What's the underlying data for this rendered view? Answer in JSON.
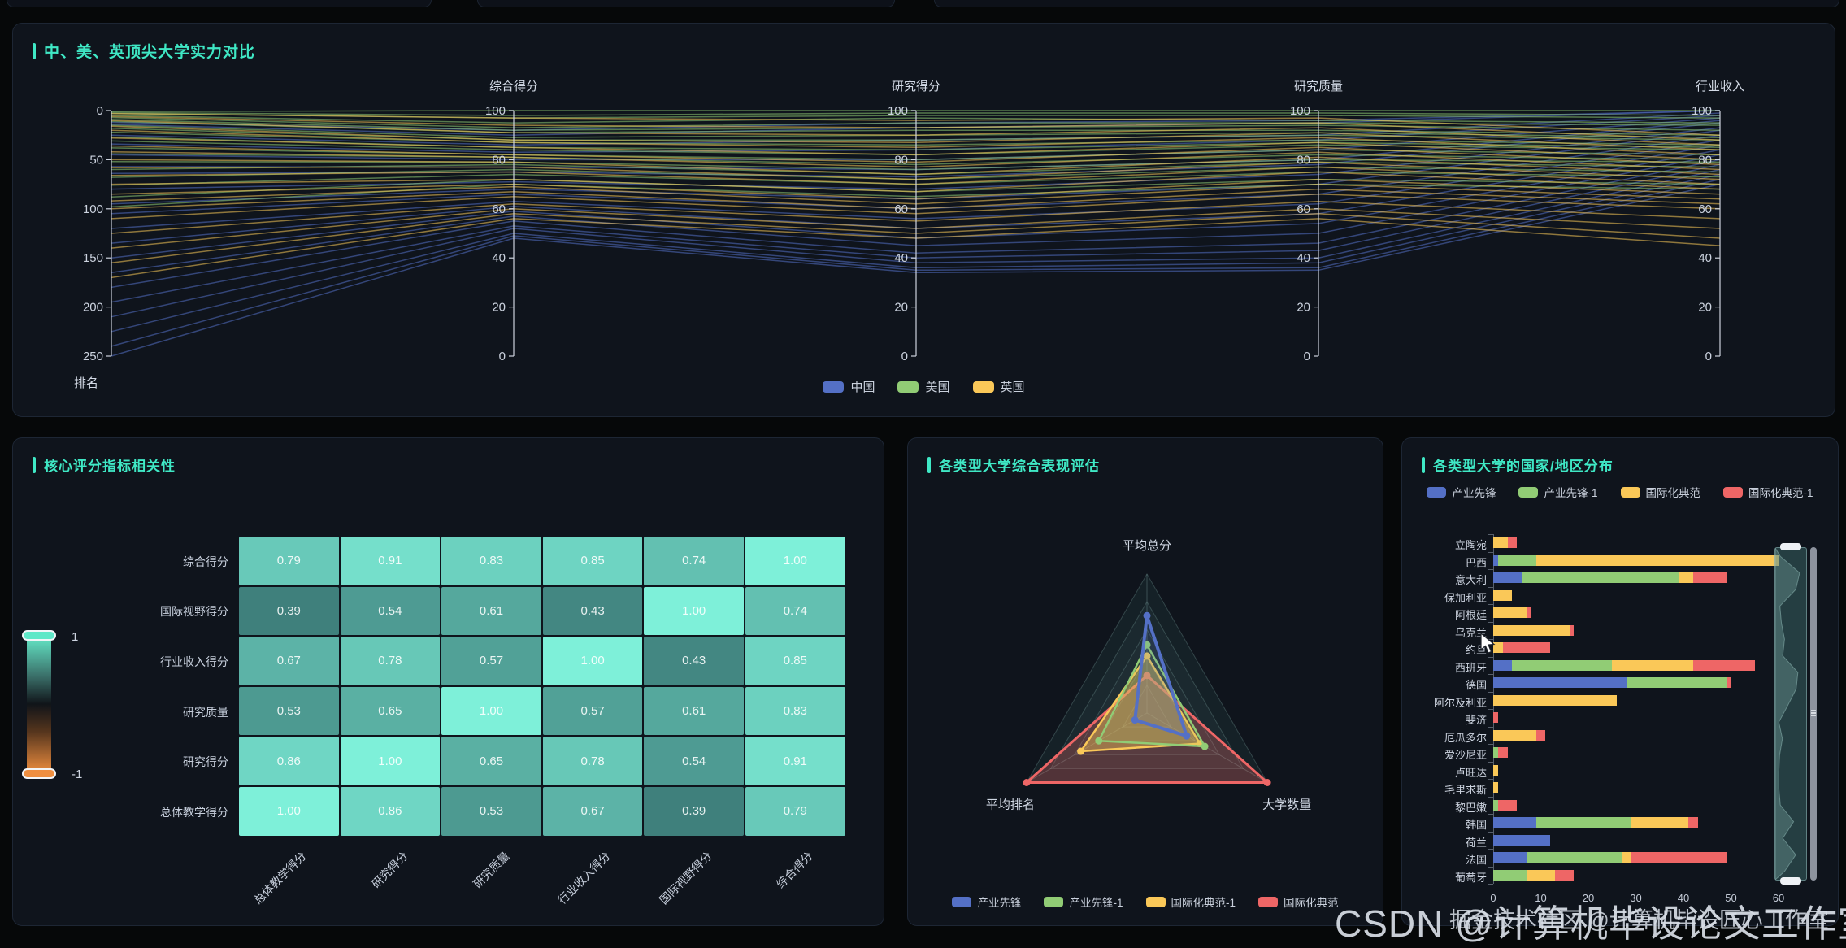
{
  "ui": {
    "top_panel_title": "中、美、英顶尖大学实力对比",
    "heatmap_title": "核心评分指标相关性",
    "radar_title": "各类型大学综合表现评估",
    "bars_title": "各类型大学的国家/地区分布",
    "watermark_large": "CSDN @计算机毕设论文工作室",
    "watermark_small": "掘金技术社区 @计算机毕设匠心工作室",
    "visualmap": {
      "max_label": "1",
      "min_label": "-1"
    },
    "accent_color": "#3fe8c5"
  },
  "chart_data": [
    {
      "id": "parallel",
      "type": "line",
      "subtype": "parallel-coordinates",
      "title": "中、美、英顶尖大学实力对比",
      "legend": [
        {
          "name": "中国",
          "color": "#5470c6"
        },
        {
          "name": "美国",
          "color": "#91cc75"
        },
        {
          "name": "英国",
          "color": "#fac858"
        }
      ],
      "axes": [
        {
          "name": "排名",
          "min": 0,
          "max": 250,
          "inverted": true,
          "tick_labels": [
            "0",
            "50",
            "100",
            "150",
            "200",
            "250"
          ]
        },
        {
          "name": "综合得分",
          "min": 0,
          "max": 100,
          "tick_labels": [
            "100",
            "80",
            "60",
            "40",
            "20",
            "0"
          ]
        },
        {
          "name": "研究得分",
          "min": 0,
          "max": 100,
          "tick_labels": [
            "100",
            "80",
            "60",
            "40",
            "20",
            "0"
          ]
        },
        {
          "name": "研究质量",
          "min": 0,
          "max": 100,
          "tick_labels": [
            "100",
            "80",
            "60",
            "40",
            "20",
            "0"
          ]
        },
        {
          "name": "行业收入",
          "min": 0,
          "max": 100,
          "tick_labels": [
            "100",
            "80",
            "60",
            "40",
            "20",
            "0"
          ]
        }
      ],
      "series": [
        {
          "name": "中国",
          "color": "#5470c6",
          "data": [
            [
              12,
              92,
              95,
              96,
              100
            ],
            [
              14,
              90,
              93,
              95,
              100
            ],
            [
              25,
              86,
              88,
              90,
              99
            ],
            [
              34,
              83,
              84,
              88,
              98
            ],
            [
              45,
              80,
              80,
              84,
              97
            ],
            [
              57,
              77,
              76,
              80,
              96
            ],
            [
              64,
              75,
              73,
              78,
              95
            ],
            [
              80,
              71,
              68,
              74,
              93
            ],
            [
              95,
              68,
              64,
              70,
              92
            ],
            [
              105,
              66,
              60,
              66,
              90
            ],
            [
              120,
              63,
              56,
              62,
              88
            ],
            [
              135,
              61,
              52,
              58,
              86
            ],
            [
              150,
              59,
              48,
              54,
              84
            ],
            [
              165,
              57,
              45,
              50,
              82
            ],
            [
              180,
              55,
              42,
              46,
              80
            ],
            [
              195,
              53,
              40,
              43,
              78
            ],
            [
              210,
              52,
              38,
              40,
              76
            ],
            [
              225,
              50,
              36,
              38,
              74
            ],
            [
              240,
              49,
              35,
              36,
              72
            ],
            [
              250,
              48,
              34,
              35,
              70
            ]
          ]
        },
        {
          "name": "美国",
          "color": "#91cc75",
          "data": [
            [
              1,
              100,
              100,
              100,
              100
            ],
            [
              2,
              98,
              99,
              99,
              98
            ],
            [
              3,
              97,
              98,
              98,
              97
            ],
            [
              5,
              95,
              97,
              96,
              95
            ],
            [
              7,
              93,
              95,
              95,
              94
            ],
            [
              9,
              92,
              93,
              94,
              92
            ],
            [
              11,
              91,
              92,
              92,
              90
            ],
            [
              15,
              89,
              90,
              91,
              89
            ],
            [
              18,
              88,
              88,
              90,
              88
            ],
            [
              22,
              87,
              86,
              88,
              86
            ],
            [
              27,
              85,
              84,
              87,
              85
            ],
            [
              31,
              84,
              82,
              86,
              84
            ],
            [
              38,
              82,
              80,
              84,
              82
            ],
            [
              44,
              81,
              78,
              82,
              80
            ],
            [
              52,
              79,
              76,
              80,
              79
            ],
            [
              60,
              78,
              74,
              79,
              77
            ],
            [
              68,
              76,
              72,
              77,
              75
            ],
            [
              76,
              74,
              70,
              75,
              73
            ],
            [
              88,
              72,
              67,
              72,
              70
            ],
            [
              98,
              70,
              65,
              70,
              68
            ]
          ]
        },
        {
          "name": "英国",
          "color": "#fac858",
          "data": [
            [
              3,
              97,
              96,
              97,
              90
            ],
            [
              6,
              94,
              93,
              95,
              88
            ],
            [
              10,
              91,
              90,
              93,
              86
            ],
            [
              16,
              88,
              87,
              91,
              84
            ],
            [
              20,
              87,
              85,
              89,
              82
            ],
            [
              28,
              85,
              82,
              87,
              80
            ],
            [
              36,
              82,
              79,
              85,
              78
            ],
            [
              42,
              81,
              77,
              83,
              76
            ],
            [
              50,
              79,
              74,
              81,
              74
            ],
            [
              58,
              77,
              72,
              79,
              72
            ],
            [
              66,
              75,
              70,
              77,
              70
            ],
            [
              75,
              72,
              67,
              75,
              68
            ],
            [
              85,
              70,
              64,
              72,
              66
            ],
            [
              92,
              69,
              62,
              70,
              64
            ],
            [
              100,
              67,
              60,
              68,
              62
            ],
            [
              110,
              65,
              58,
              66,
              60
            ],
            [
              125,
              62,
              55,
              63,
              56
            ],
            [
              140,
              60,
              52,
              60,
              52
            ],
            [
              155,
              58,
              50,
              58,
              48
            ],
            [
              170,
              56,
              48,
              56,
              45
            ]
          ]
        }
      ]
    },
    {
      "id": "heatmap",
      "type": "heatmap",
      "title": "核心评分指标相关性",
      "x_labels": [
        "总体教学得分",
        "研究得分",
        "研究质量",
        "行业收入得分",
        "国际视野得分",
        "综合得分"
      ],
      "y_labels": [
        "综合得分",
        "国际视野得分",
        "行业收入得分",
        "研究质量",
        "研究得分",
        "总体教学得分"
      ],
      "values": [
        [
          0.79,
          0.91,
          0.83,
          0.85,
          0.74,
          1.0
        ],
        [
          0.39,
          0.54,
          0.61,
          0.43,
          1.0,
          0.74
        ],
        [
          0.67,
          0.78,
          0.57,
          1.0,
          0.43,
          0.85
        ],
        [
          0.53,
          0.65,
          1.0,
          0.57,
          0.61,
          0.83
        ],
        [
          0.86,
          1.0,
          0.65,
          0.78,
          0.54,
          0.91
        ],
        [
          1.0,
          0.86,
          0.53,
          0.67,
          0.39,
          0.79
        ]
      ],
      "visual_range": [
        -1,
        1
      ],
      "high_color": "#7ef0d9",
      "low_color": "#ef8e3f"
    },
    {
      "id": "radar",
      "type": "line",
      "subtype": "radar",
      "title": "各类型大学综合表现评估",
      "indicators": [
        "平均总分",
        "大学数量",
        "平均排名"
      ],
      "legend": [
        {
          "name": "产业先锋",
          "color": "#5470c6"
        },
        {
          "name": "产业先锋-1",
          "color": "#91cc75"
        },
        {
          "name": "国际化典范-1",
          "color": "#fac858"
        },
        {
          "name": "国际化典范",
          "color": "#ee6666"
        }
      ],
      "series": [
        {
          "name": "产业先锋",
          "color": "#5470c6",
          "values": [
            0.7,
            0.33,
            0.1
          ]
        },
        {
          "name": "产业先锋-1",
          "color": "#91cc75",
          "values": [
            0.49,
            0.48,
            0.4
          ]
        },
        {
          "name": "国际化典范-1",
          "color": "#fac858",
          "values": [
            0.41,
            0.44,
            0.55
          ]
        },
        {
          "name": "国际化典范",
          "color": "#ee6666",
          "values": [
            0.27,
            1.0,
            1.0
          ]
        }
      ]
    },
    {
      "id": "bars",
      "type": "bar",
      "subtype": "horizontal-stacked",
      "title": "各类型大学的国家/地区分布",
      "legend": [
        {
          "name": "产业先锋",
          "color": "#5470c6"
        },
        {
          "name": "产业先锋-1",
          "color": "#91cc75"
        },
        {
          "name": "国际化典范",
          "color": "#fac858"
        },
        {
          "name": "国际化典范-1",
          "color": "#ee6666"
        }
      ],
      "categories": [
        "立陶宛",
        "巴西",
        "意大利",
        "保加利亚",
        "阿根廷",
        "乌克兰",
        "约旦",
        "西班牙",
        "德国",
        "阿尔及利亚",
        "斐济",
        "厄瓜多尔",
        "爱沙尼亚",
        "卢旺达",
        "毛里求斯",
        "黎巴嫩",
        "韩国",
        "荷兰",
        "法国",
        "葡萄牙"
      ],
      "series": [
        {
          "name": "产业先锋",
          "color": "#5470c6",
          "values": [
            0,
            1,
            6,
            0,
            0,
            0,
            0,
            4,
            28,
            0,
            0,
            0,
            0,
            0,
            0,
            0,
            9,
            12,
            7,
            0
          ]
        },
        {
          "name": "产业先锋-1",
          "color": "#91cc75",
          "values": [
            0,
            8,
            33,
            0,
            0,
            0,
            0,
            21,
            21,
            0,
            0,
            0,
            1,
            0,
            0,
            1,
            20,
            0,
            20,
            7
          ]
        },
        {
          "name": "国际化典范",
          "color": "#fac858",
          "values": [
            3,
            51,
            3,
            4,
            7,
            16,
            2,
            17,
            0,
            26,
            0,
            9,
            0,
            1,
            1,
            0,
            12,
            0,
            2,
            6
          ]
        },
        {
          "name": "国际化典范-1",
          "color": "#ee6666",
          "values": [
            2,
            0,
            7,
            0,
            1,
            1,
            10,
            13,
            1,
            0,
            1,
            2,
            2,
            0,
            0,
            4,
            2,
            0,
            20,
            4
          ]
        }
      ],
      "x_ticks": [
        "0",
        "10",
        "20",
        "30",
        "40",
        "50",
        "60"
      ],
      "xlim": [
        0,
        60
      ]
    }
  ]
}
